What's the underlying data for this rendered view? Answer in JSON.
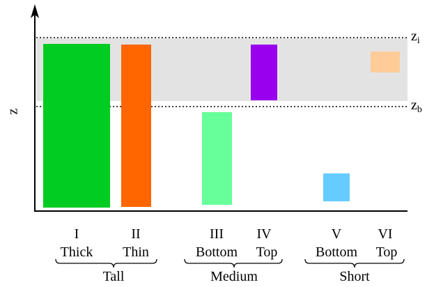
{
  "axis": {
    "label": "z"
  },
  "levels": [
    {
      "name": "z",
      "subscript": "i"
    },
    {
      "name": "z",
      "subscript": "b"
    }
  ],
  "groups": [
    {
      "label": "Tall",
      "columns": [
        {
          "numeral": "I",
          "label": "Thick"
        },
        {
          "numeral": "II",
          "label": "Thin"
        }
      ]
    },
    {
      "label": "Medium",
      "columns": [
        {
          "numeral": "III",
          "label": "Bottom"
        },
        {
          "numeral": "IV",
          "label": "Top"
        }
      ]
    },
    {
      "label": "Short",
      "columns": [
        {
          "numeral": "V",
          "label": "Bottom"
        },
        {
          "numeral": "VI",
          "label": "Top"
        }
      ]
    }
  ]
}
